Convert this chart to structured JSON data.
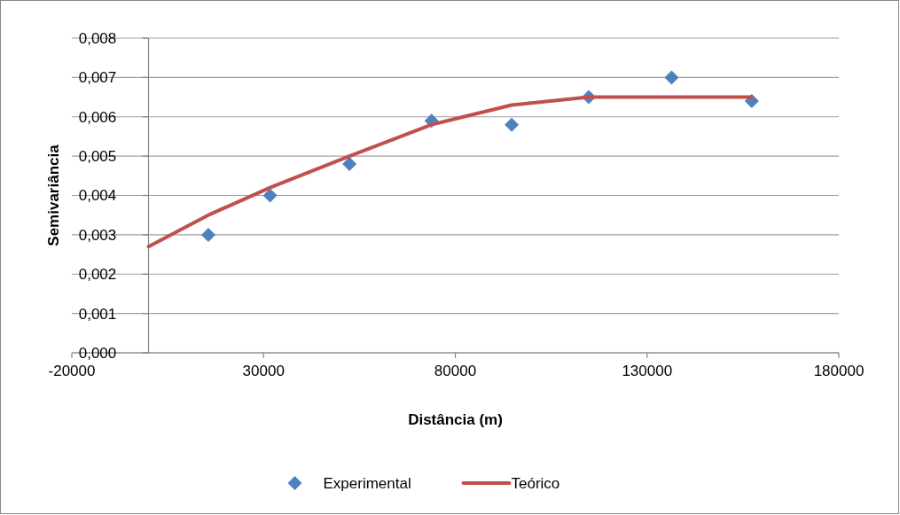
{
  "chart_data": {
    "type": "scatter",
    "xlabel": "Distância (m)",
    "ylabel": "Semivariância",
    "xlim": [
      -20000,
      180000
    ],
    "xticks": [
      -20000,
      30000,
      80000,
      130000,
      180000
    ],
    "ylim": [
      0,
      0.008
    ],
    "yticks": [
      {
        "value": 0,
        "label": "0,000"
      },
      {
        "value": 0.001,
        "label": "0,001"
      },
      {
        "value": 0.002,
        "label": "0,002"
      },
      {
        "value": 0.003,
        "label": "0,003"
      },
      {
        "value": 0.004,
        "label": "0,004"
      },
      {
        "value": 0.005,
        "label": "0,005"
      },
      {
        "value": 0.006,
        "label": "0,006"
      },
      {
        "value": 0.007,
        "label": "0,007"
      },
      {
        "value": 0.008,
        "label": "0,008"
      }
    ],
    "grid": "y",
    "legend": "bottom",
    "series": [
      {
        "name": "Experimental",
        "marker": "diamond",
        "color": "#4f81bd",
        "x": [
          15600,
          31700,
          52400,
          73800,
          94700,
          114800,
          136400,
          157300
        ],
        "values": [
          0.003,
          0.004,
          0.0048,
          0.0059,
          0.0058,
          0.0065,
          0.007,
          0.0064
        ]
      },
      {
        "name": "Teórico",
        "type": "line",
        "marker": "none",
        "color": "#c0504d",
        "x": [
          0,
          15600,
          31700,
          52400,
          73800,
          94700,
          114800,
          157300
        ],
        "values": [
          0.0027,
          0.0035,
          0.0042,
          0.005,
          0.0058,
          0.0063,
          0.0065,
          0.0065
        ]
      }
    ]
  }
}
